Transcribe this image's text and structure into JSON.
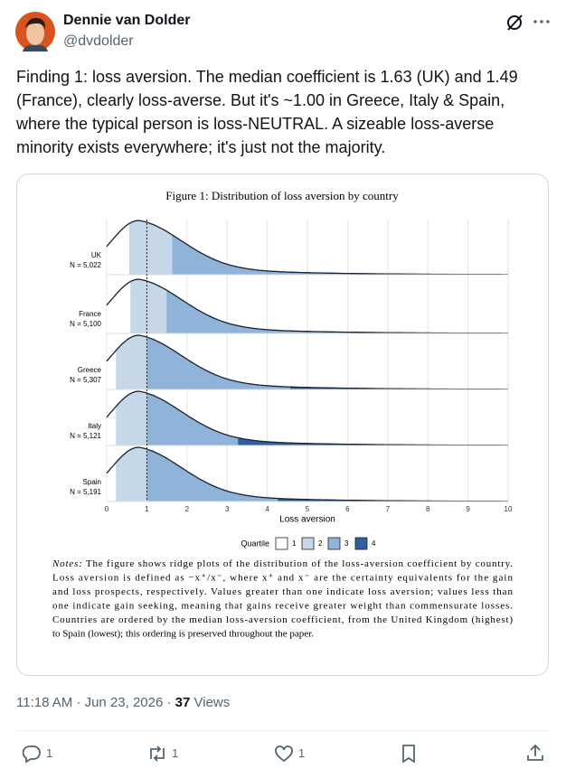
{
  "header": {
    "name": "Dennie van Dolder",
    "handle": "@dvdolder"
  },
  "tweet": {
    "lines": [
      "Finding 1: loss aversion. The median coefficient is 1.63 (UK) and 1.49",
      "(France), clearly loss-averse. But it's ~1.00 in Greece, Italy & Spain,",
      "where the typical person is loss-NEUTRAL. A sizeable loss-averse",
      "minority exists everywhere; it's just not the majority."
    ]
  },
  "chart_data": {
    "type": "ridge",
    "title": "Figure 1: Distribution of loss aversion by country",
    "xlabel": "Loss aversion",
    "xlim": [
      0,
      10
    ],
    "xticks": [
      0,
      1,
      2,
      3,
      4,
      5,
      6,
      7,
      8,
      9,
      10
    ],
    "refline": 1,
    "grid": true,
    "legend_title": "Quartile",
    "legend": [
      "1",
      "2",
      "3",
      "4"
    ],
    "colors": [
      "#ffffff",
      "#c6d7e8",
      "#8fb3d9",
      "#2f5f9f"
    ],
    "series": [
      {
        "name": "UK",
        "n_label": "N = 5,022",
        "quartiles": [
          0.56,
          1.63,
          7.0
        ]
      },
      {
        "name": "France",
        "n_label": "N = 5,100",
        "quartiles": [
          0.59,
          1.49,
          6.78
        ]
      },
      {
        "name": "Greece",
        "n_label": "N = 5,307",
        "quartiles": [
          0.23,
          1.0,
          4.57
        ]
      },
      {
        "name": "Italy",
        "n_label": "N = 5,121",
        "quartiles": [
          0.23,
          1.0,
          3.27
        ]
      },
      {
        "name": "Spain",
        "n_label": "N = 5,191",
        "quartiles": [
          0.23,
          1.0,
          4.26
        ]
      }
    ]
  },
  "notes": {
    "label": "Notes:",
    "lines": [
      " The figure shows ridge plots of the distribution of the loss-aversion coefficient by country.",
      "Loss aversion is defined as −x⁺/x⁻, where x⁺ and x⁻ are the certainty equivalents for the gain",
      "and loss prospects, respectively.  Values greater than one indicate loss aversion; values less than",
      "one indicate gain seeking, meaning that gains receive greater weight than commensurate losses.",
      "Countries are ordered by the median loss-aversion coefficient, from the United Kingdom (highest)",
      "to Spain (lowest); this ordering is preserved throughout the paper."
    ]
  },
  "meta": {
    "time": "11:18 AM · Jun 23, 2026 · ",
    "views": "37",
    "views_label": " Views"
  },
  "actions": {
    "replies": "1",
    "reposts": "1",
    "likes": "1"
  }
}
